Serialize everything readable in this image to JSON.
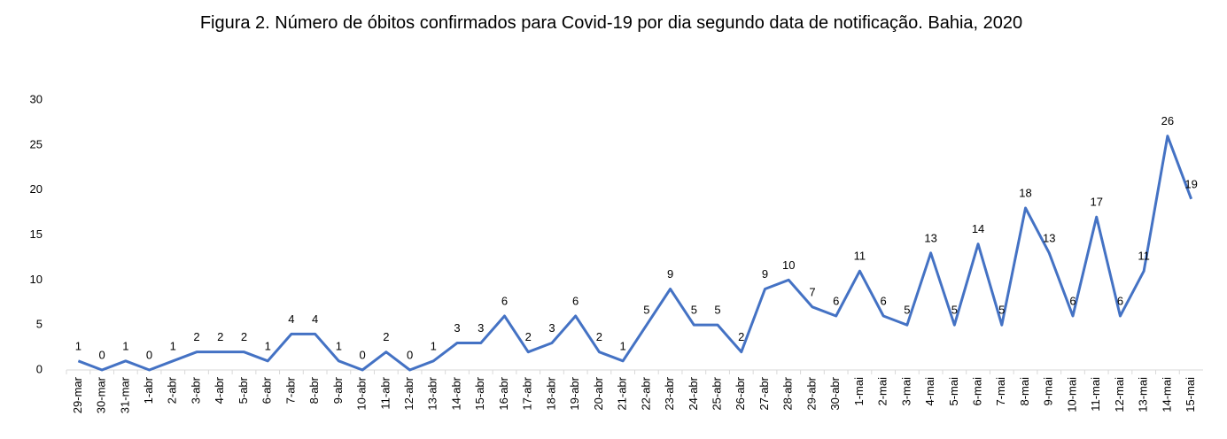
{
  "chart_data": {
    "type": "line",
    "title": "Figura 2. Número de óbitos confirmados para Covid-19 por dia segundo data de notificação. Bahia, 2020",
    "categories": [
      "29-mar",
      "30-mar",
      "31-mar",
      "1-abr",
      "2-abr",
      "3-abr",
      "4-abr",
      "5-abr",
      "6-abr",
      "7-abr",
      "8-abr",
      "9-abr",
      "10-abr",
      "11-abr",
      "12-abr",
      "13-abr",
      "14-abr",
      "15-abr",
      "16-abr",
      "17-abr",
      "18-abr",
      "19-abr",
      "20-abr",
      "21-abr",
      "22-abr",
      "23-abr",
      "24-abr",
      "25-abr",
      "26-abr",
      "27-abr",
      "28-abr",
      "29-abr",
      "30-abr",
      "1-mai",
      "2-mai",
      "3-mai",
      "4-mai",
      "5-mai",
      "6-mai",
      "7-mai",
      "8-mai",
      "9-mai",
      "10-mai",
      "11-mai",
      "12-mai",
      "13-mai",
      "14-mai",
      "15-mai"
    ],
    "values": [
      1,
      0,
      1,
      0,
      1,
      2,
      2,
      2,
      1,
      4,
      4,
      1,
      0,
      2,
      0,
      1,
      3,
      3,
      6,
      2,
      3,
      6,
      2,
      1,
      5,
      9,
      5,
      5,
      2,
      9,
      10,
      7,
      6,
      11,
      6,
      5,
      13,
      5,
      14,
      5,
      18,
      13,
      6,
      17,
      6,
      11,
      26,
      19
    ],
    "color": "#4472c4",
    "ylim": [
      0,
      30
    ],
    "yticks": [
      0,
      5,
      10,
      15,
      20,
      25,
      30
    ],
    "grid": false
  }
}
